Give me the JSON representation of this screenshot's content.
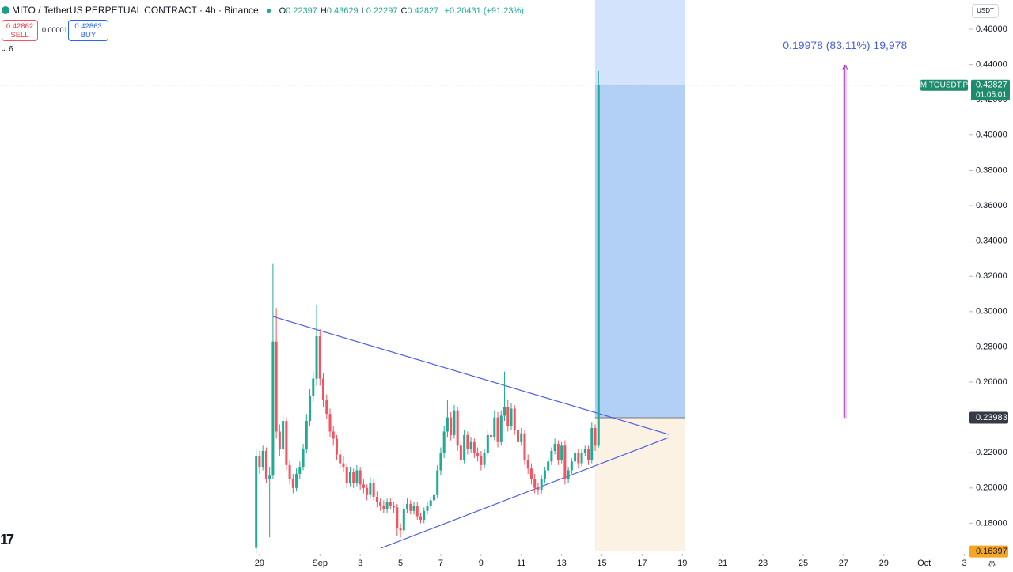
{
  "header": {
    "title": "MITO / TetherUS PERPETUAL CONTRACT · 4h · Binance",
    "ohlc": [
      {
        "label": "O",
        "value": 0.22397
      },
      {
        "label": "H",
        "value": 0.43629
      },
      {
        "label": "L",
        "value": 0.22297
      },
      {
        "label": "C",
        "value": 0.42827
      }
    ],
    "change": "+0.20431 (+91.23%)",
    "sell": {
      "price": 0.42862,
      "label": "SELL"
    },
    "spread": 1e-05,
    "buy": {
      "price": 0.42863,
      "label": "BUY"
    },
    "indicators": 6,
    "currency": "USDT"
  },
  "chart_data": {
    "type": "candlestick",
    "up_color": "#22ab94",
    "down_color": "#f7525f",
    "xlim": [
      -309.3,
      846.1
    ],
    "ylim": [
      0.1627,
      0.4766
    ],
    "xticks": [
      {
        "value": 0,
        "label": "29"
      },
      {
        "value": 72,
        "label": "Sep"
      },
      {
        "value": 120,
        "label": "3"
      },
      {
        "value": 168,
        "label": "5"
      },
      {
        "value": 216,
        "label": "7"
      },
      {
        "value": 264,
        "label": "9"
      },
      {
        "value": 312,
        "label": "11"
      },
      {
        "value": 360,
        "label": "13"
      },
      {
        "value": 408,
        "label": "15"
      },
      {
        "value": 456,
        "label": "17"
      },
      {
        "value": 504,
        "label": "19"
      },
      {
        "value": 552,
        "label": "21"
      },
      {
        "value": 600,
        "label": "23"
      },
      {
        "value": 648,
        "label": "25"
      },
      {
        "value": 696,
        "label": "27"
      },
      {
        "value": 744,
        "label": "29"
      },
      {
        "value": 792,
        "label": "Oct"
      },
      {
        "value": 840,
        "label": "3"
      }
    ],
    "yticks": [
      {
        "value": 0.18,
        "label": "0.18000"
      },
      {
        "value": 0.2,
        "label": "0.20000"
      },
      {
        "value": 0.22,
        "label": "0.22000"
      },
      {
        "value": 0.24,
        "label": "0.24000"
      },
      {
        "value": 0.26,
        "label": "0.26000"
      },
      {
        "value": 0.28,
        "label": "0.28000"
      },
      {
        "value": 0.3,
        "label": "0.30000"
      },
      {
        "value": 0.32,
        "label": "0.32000"
      },
      {
        "value": 0.34,
        "label": "0.34000"
      },
      {
        "value": 0.36,
        "label": "0.36000"
      },
      {
        "value": 0.38,
        "label": "0.38000"
      },
      {
        "value": 0.4,
        "label": "0.40000"
      },
      {
        "value": 0.42,
        "label": "0.42000"
      },
      {
        "value": 0.44,
        "label": "0.44000"
      },
      {
        "value": 0.46,
        "label": "0.46000"
      }
    ],
    "x": [
      -4,
      0,
      4,
      8,
      12,
      16,
      20,
      24,
      28,
      32,
      36,
      40,
      44,
      48,
      52,
      56,
      60,
      64,
      68,
      72,
      76,
      80,
      84,
      88,
      92,
      96,
      100,
      104,
      108,
      112,
      116,
      120,
      124,
      128,
      132,
      136,
      140,
      144,
      148,
      152,
      156,
      160,
      164,
      168,
      172,
      176,
      180,
      184,
      188,
      192,
      196,
      200,
      204,
      208,
      212,
      216,
      220,
      224,
      228,
      232,
      236,
      240,
      244,
      248,
      252,
      256,
      260,
      264,
      268,
      272,
      276,
      280,
      284,
      288,
      292,
      296,
      300,
      304,
      308,
      312,
      316,
      320,
      324,
      328,
      332,
      336,
      340,
      344,
      348,
      352,
      356,
      360,
      364,
      368,
      372,
      376,
      380,
      384,
      388,
      392,
      396,
      400,
      404
    ],
    "candles": [
      [
        0.166,
        0.222,
        0.163,
        0.218
      ],
      [
        0.218,
        0.221,
        0.208,
        0.212
      ],
      [
        0.212,
        0.224,
        0.21,
        0.221
      ],
      [
        0.221,
        0.223,
        0.203,
        0.205
      ],
      [
        0.205,
        0.212,
        0.172,
        0.207
      ],
      [
        0.207,
        0.327,
        0.205,
        0.283
      ],
      [
        0.283,
        0.302,
        0.228,
        0.232
      ],
      [
        0.232,
        0.236,
        0.218,
        0.222
      ],
      [
        0.222,
        0.242,
        0.219,
        0.238
      ],
      [
        0.238,
        0.24,
        0.21,
        0.213
      ],
      [
        0.213,
        0.216,
        0.202,
        0.205
      ],
      [
        0.205,
        0.208,
        0.197,
        0.2
      ],
      [
        0.2,
        0.211,
        0.198,
        0.208
      ],
      [
        0.208,
        0.215,
        0.205,
        0.212
      ],
      [
        0.212,
        0.225,
        0.21,
        0.222
      ],
      [
        0.222,
        0.242,
        0.22,
        0.238
      ],
      [
        0.238,
        0.256,
        0.235,
        0.252
      ],
      [
        0.252,
        0.266,
        0.249,
        0.262
      ],
      [
        0.262,
        0.304,
        0.258,
        0.286
      ],
      [
        0.286,
        0.29,
        0.258,
        0.262
      ],
      [
        0.262,
        0.265,
        0.246,
        0.25
      ],
      [
        0.25,
        0.253,
        0.239,
        0.242
      ],
      [
        0.242,
        0.245,
        0.229,
        0.232
      ],
      [
        0.232,
        0.235,
        0.224,
        0.228
      ],
      [
        0.228,
        0.23,
        0.216,
        0.219
      ],
      [
        0.219,
        0.222,
        0.211,
        0.214
      ],
      [
        0.214,
        0.218,
        0.209,
        0.212
      ],
      [
        0.212,
        0.214,
        0.2,
        0.203
      ],
      [
        0.203,
        0.212,
        0.201,
        0.209
      ],
      [
        0.209,
        0.211,
        0.2,
        0.203
      ],
      [
        0.203,
        0.213,
        0.201,
        0.21
      ],
      [
        0.21,
        0.212,
        0.199,
        0.202
      ],
      [
        0.202,
        0.205,
        0.197,
        0.2
      ],
      [
        0.2,
        0.202,
        0.193,
        0.196
      ],
      [
        0.196,
        0.206,
        0.194,
        0.203
      ],
      [
        0.203,
        0.205,
        0.193,
        0.195
      ],
      [
        0.195,
        0.198,
        0.189,
        0.192
      ],
      [
        0.192,
        0.194,
        0.187,
        0.19
      ],
      [
        0.19,
        0.193,
        0.186,
        0.188
      ],
      [
        0.188,
        0.194,
        0.186,
        0.192
      ],
      [
        0.192,
        0.194,
        0.188,
        0.19
      ],
      [
        0.19,
        0.192,
        0.186,
        0.189
      ],
      [
        0.189,
        0.191,
        0.173,
        0.177
      ],
      [
        0.177,
        0.18,
        0.172,
        0.176
      ],
      [
        0.176,
        0.191,
        0.174,
        0.188
      ],
      [
        0.188,
        0.194,
        0.186,
        0.191
      ],
      [
        0.191,
        0.193,
        0.185,
        0.187
      ],
      [
        0.187,
        0.192,
        0.185,
        0.19
      ],
      [
        0.19,
        0.192,
        0.182,
        0.184
      ],
      [
        0.184,
        0.186,
        0.18,
        0.182
      ],
      [
        0.182,
        0.189,
        0.18,
        0.187
      ],
      [
        0.187,
        0.192,
        0.185,
        0.19
      ],
      [
        0.19,
        0.195,
        0.188,
        0.193
      ],
      [
        0.193,
        0.198,
        0.191,
        0.196
      ],
      [
        0.196,
        0.213,
        0.194,
        0.21
      ],
      [
        0.21,
        0.223,
        0.207,
        0.22
      ],
      [
        0.22,
        0.235,
        0.217,
        0.232
      ],
      [
        0.232,
        0.25,
        0.229,
        0.24
      ],
      [
        0.24,
        0.243,
        0.227,
        0.23
      ],
      [
        0.23,
        0.247,
        0.228,
        0.244
      ],
      [
        0.244,
        0.246,
        0.221,
        0.224
      ],
      [
        0.224,
        0.227,
        0.213,
        0.216
      ],
      [
        0.216,
        0.233,
        0.214,
        0.23
      ],
      [
        0.23,
        0.232,
        0.219,
        0.222
      ],
      [
        0.222,
        0.229,
        0.22,
        0.226
      ],
      [
        0.226,
        0.228,
        0.217,
        0.22
      ],
      [
        0.22,
        0.223,
        0.215,
        0.218
      ],
      [
        0.218,
        0.221,
        0.21,
        0.213
      ],
      [
        0.213,
        0.222,
        0.211,
        0.22
      ],
      [
        0.22,
        0.233,
        0.218,
        0.23
      ],
      [
        0.23,
        0.234,
        0.226,
        0.229
      ],
      [
        0.229,
        0.244,
        0.227,
        0.24
      ],
      [
        0.24,
        0.243,
        0.223,
        0.226
      ],
      [
        0.226,
        0.244,
        0.224,
        0.241
      ],
      [
        0.241,
        0.266,
        0.238,
        0.246
      ],
      [
        0.246,
        0.25,
        0.232,
        0.235
      ],
      [
        0.235,
        0.248,
        0.233,
        0.245
      ],
      [
        0.245,
        0.247,
        0.23,
        0.233
      ],
      [
        0.233,
        0.236,
        0.223,
        0.226
      ],
      [
        0.226,
        0.234,
        0.224,
        0.231
      ],
      [
        0.231,
        0.233,
        0.213,
        0.216
      ],
      [
        0.216,
        0.219,
        0.208,
        0.211
      ],
      [
        0.211,
        0.214,
        0.202,
        0.205
      ],
      [
        0.205,
        0.208,
        0.197,
        0.2
      ],
      [
        0.2,
        0.203,
        0.196,
        0.199
      ],
      [
        0.199,
        0.207,
        0.197,
        0.205
      ],
      [
        0.205,
        0.212,
        0.203,
        0.21
      ],
      [
        0.21,
        0.217,
        0.208,
        0.215
      ],
      [
        0.215,
        0.223,
        0.213,
        0.221
      ],
      [
        0.221,
        0.228,
        0.219,
        0.225
      ],
      [
        0.225,
        0.227,
        0.213,
        0.216
      ],
      [
        0.216,
        0.226,
        0.214,
        0.224
      ],
      [
        0.224,
        0.227,
        0.202,
        0.205
      ],
      [
        0.205,
        0.212,
        0.203,
        0.21
      ],
      [
        0.21,
        0.217,
        0.208,
        0.215
      ],
      [
        0.215,
        0.222,
        0.213,
        0.22
      ],
      [
        0.22,
        0.222,
        0.211,
        0.214
      ],
      [
        0.214,
        0.222,
        0.212,
        0.22
      ],
      [
        0.22,
        0.224,
        0.218,
        0.222
      ],
      [
        0.222,
        0.224,
        0.213,
        0.216
      ],
      [
        0.216,
        0.237,
        0.214,
        0.234
      ],
      [
        0.234,
        0.236,
        0.221,
        0.224
      ],
      [
        0.22397,
        0.43629,
        0.22297,
        0.42827
      ]
    ],
    "trendlines": [
      {
        "x": [
          16,
          487.5
        ],
        "y": [
          0.2972,
          0.2304
        ],
        "color": "#4a5fe0"
      },
      {
        "x": [
          144.3,
          487.5
        ],
        "y": [
          0.1658,
          0.2286
        ],
        "color": "#4a5fe0"
      }
    ],
    "position": {
      "entry": 0.23983,
      "stop": 0.16397,
      "x_range": [
        399.8,
        507.3
      ]
    },
    "measure": {
      "label": "0.19978 (83.11%) 19,978",
      "to": 0.4396,
      "x": 697.8,
      "color": "#9c27b0"
    },
    "last": {
      "symbol": "MITOUSDT.P",
      "price": 0.42827,
      "countdown": "01:05:01",
      "color": "#1e8a6e"
    }
  }
}
